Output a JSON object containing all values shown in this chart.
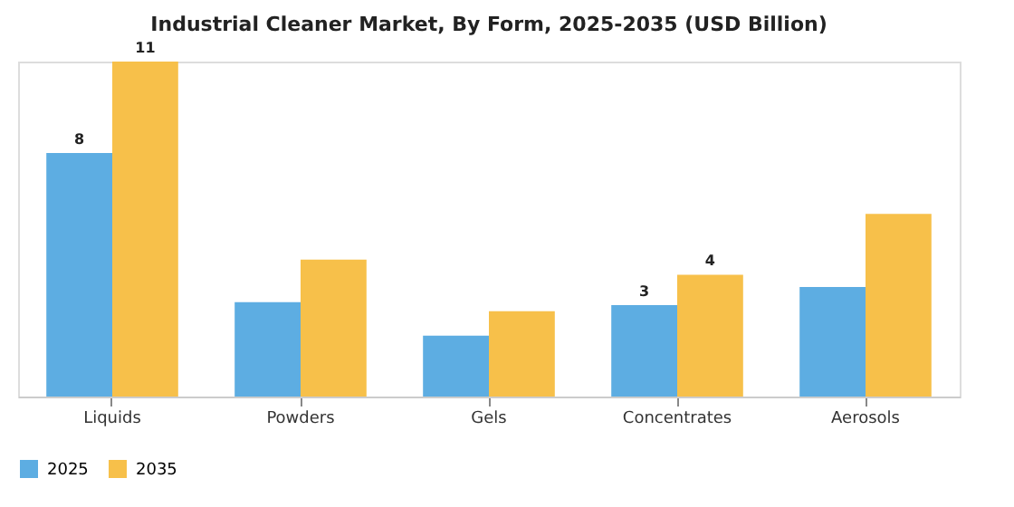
{
  "chart_data": {
    "type": "bar",
    "title": "Industrial Cleaner Market, By Form, 2025-2035 (USD Billion)",
    "categories": [
      "Liquids",
      "Powders",
      "Gels",
      "Concentrates",
      "Aerosols"
    ],
    "series": [
      {
        "name": "2025",
        "color": "#5dade2",
        "values": [
          8,
          3.1,
          2.0,
          3,
          3.6
        ],
        "value_labels": [
          "8",
          null,
          null,
          "3",
          null
        ]
      },
      {
        "name": "2035",
        "color": "#f7c04a",
        "values": [
          11,
          4.5,
          2.8,
          4,
          6.0
        ],
        "value_labels": [
          "11",
          null,
          null,
          "4",
          null
        ]
      }
    ],
    "grid": false,
    "legend": "bottom",
    "tick_labels": "x"
  }
}
